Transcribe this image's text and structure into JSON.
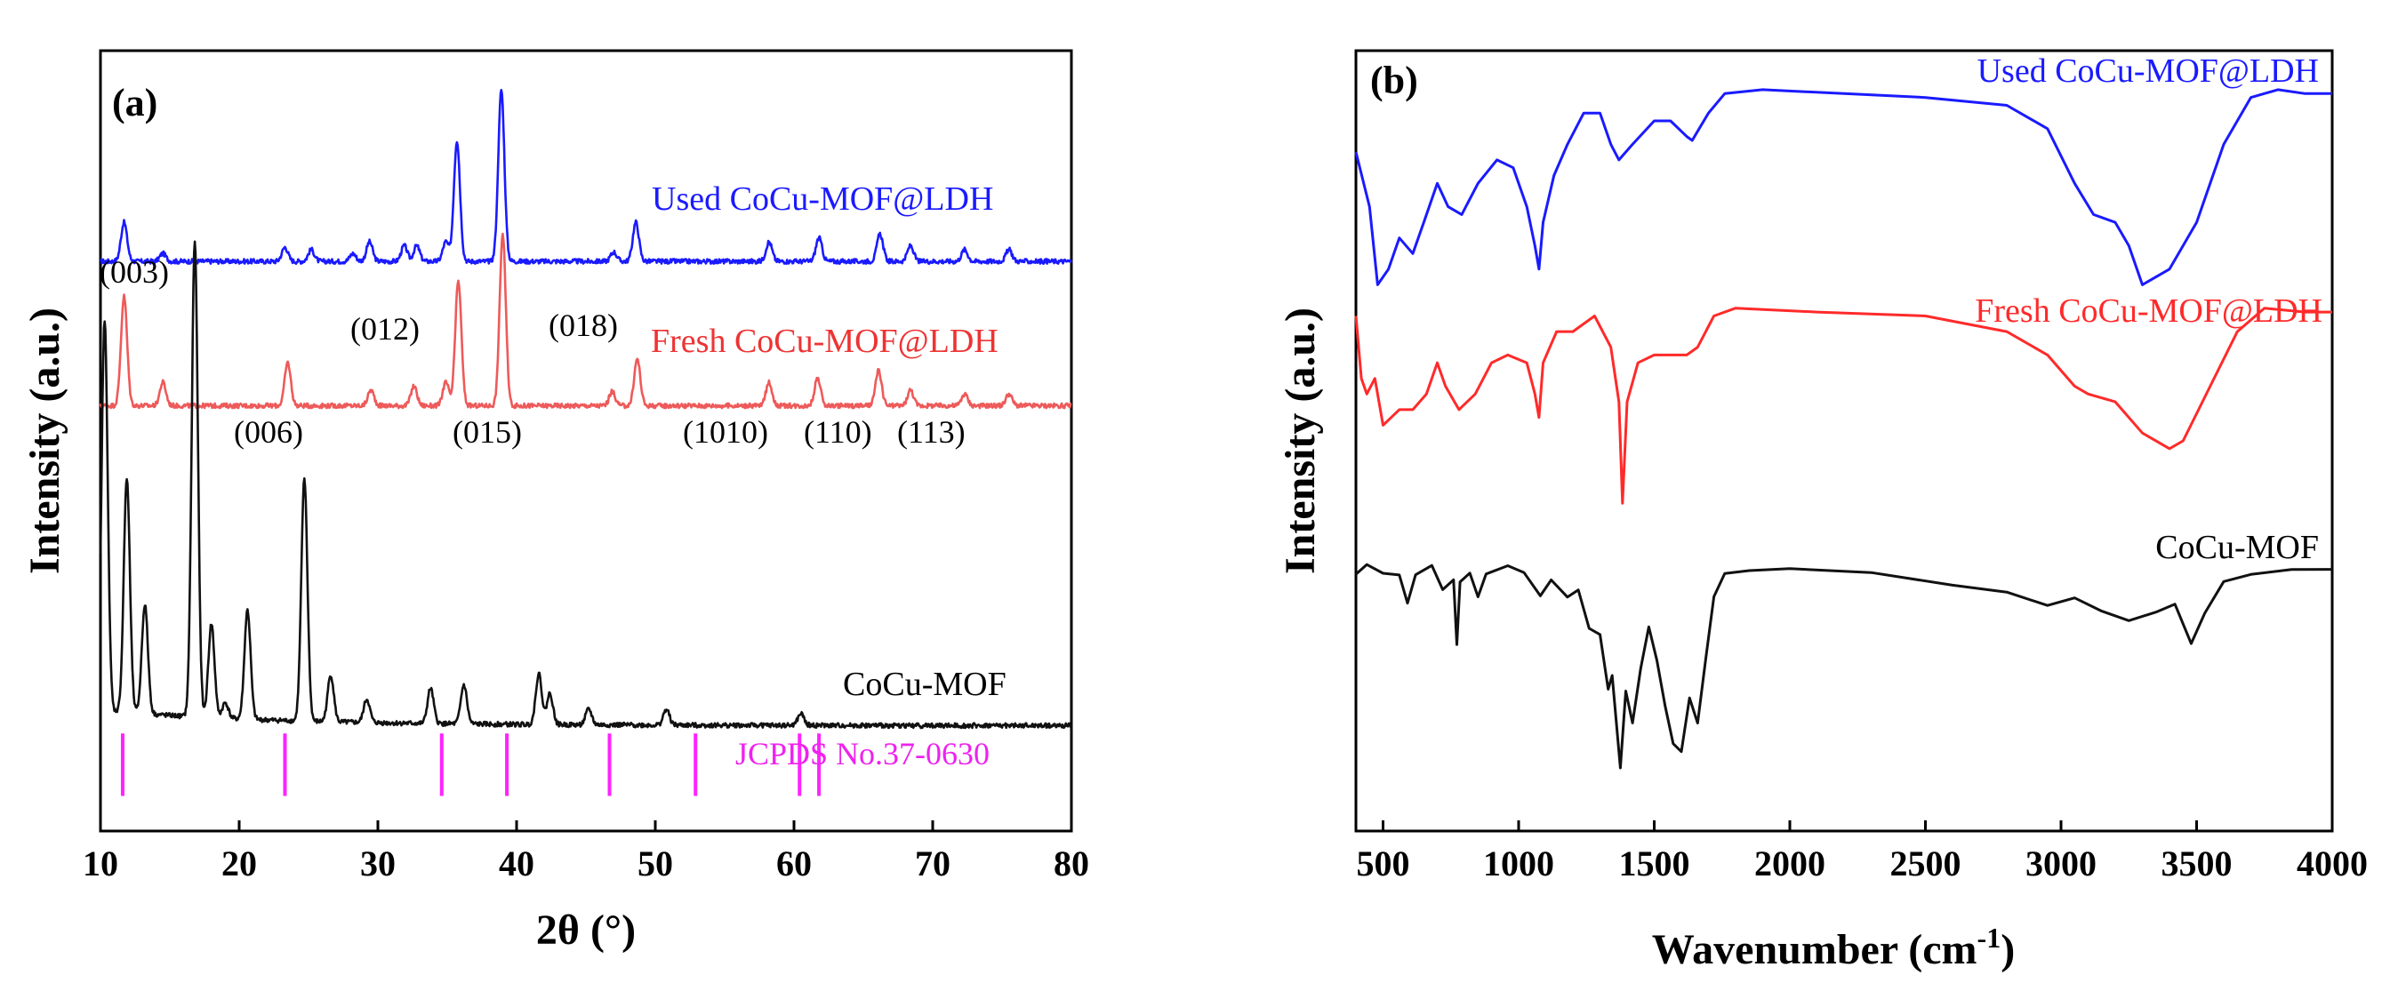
{
  "colors": {
    "used": "#1a1aff",
    "fresh": "#ff2a2a",
    "mof": "#111111",
    "ref": "#ff22ff",
    "fresh_xrd": "#ee5a5a"
  },
  "chart_data": [
    {
      "type": "line",
      "panel": "(a)",
      "title": "",
      "xlabel": "2θ (°)",
      "ylabel": "Intensity (a.u.)",
      "xlim": [
        10,
        80
      ],
      "xticks": [
        "10",
        "20",
        "30",
        "40",
        "50",
        "60",
        "70",
        "80"
      ],
      "grid": false,
      "series": [
        {
          "name": "Used CoCu-MOF@LDH",
          "color_key": "used",
          "baseline": 0.73,
          "peaks": [
            [
              11.7,
              0.05
            ],
            [
              14.5,
              0.01
            ],
            [
              23.3,
              0.018
            ],
            [
              25.2,
              0.015
            ],
            [
              28.2,
              0.01
            ],
            [
              29.4,
              0.025
            ],
            [
              31.9,
              0.02
            ],
            [
              32.8,
              0.02
            ],
            [
              34.9,
              0.025
            ],
            [
              35.7,
              0.155
            ],
            [
              38.9,
              0.22
            ],
            [
              47.0,
              0.012
            ],
            [
              48.6,
              0.05
            ],
            [
              58.2,
              0.025
            ],
            [
              61.8,
              0.03
            ],
            [
              66.2,
              0.035
            ],
            [
              68.4,
              0.02
            ],
            [
              72.3,
              0.015
            ],
            [
              75.5,
              0.015
            ]
          ]
        },
        {
          "name": "Fresh CoCu-MOF@LDH",
          "color_key": "fresh_xrd",
          "baseline": 0.545,
          "peaks": [
            [
              11.7,
              0.14
            ],
            [
              14.5,
              0.03
            ],
            [
              23.5,
              0.055
            ],
            [
              29.5,
              0.02
            ],
            [
              32.6,
              0.025
            ],
            [
              34.9,
              0.03
            ],
            [
              35.8,
              0.16
            ],
            [
              39.0,
              0.22
            ],
            [
              46.9,
              0.018
            ],
            [
              48.7,
              0.06
            ],
            [
              58.2,
              0.03
            ],
            [
              61.7,
              0.035
            ],
            [
              66.1,
              0.045
            ],
            [
              68.4,
              0.02
            ],
            [
              72.3,
              0.015
            ],
            [
              75.5,
              0.015
            ]
          ]
        },
        {
          "name": "CoCu-MOF",
          "color_key": "mof",
          "baseline": 0.135,
          "peaks": [
            [
              10.3,
              0.5
            ],
            [
              11.9,
              0.3
            ],
            [
              13.2,
              0.14
            ],
            [
              16.8,
              0.61
            ],
            [
              18.0,
              0.12
            ],
            [
              19.0,
              0.02
            ],
            [
              20.6,
              0.14
            ],
            [
              24.7,
              0.31
            ],
            [
              26.6,
              0.06
            ],
            [
              29.2,
              0.03
            ],
            [
              33.8,
              0.045
            ],
            [
              36.2,
              0.05
            ],
            [
              41.6,
              0.065
            ],
            [
              42.4,
              0.04
            ],
            [
              45.2,
              0.02
            ],
            [
              50.8,
              0.02
            ],
            [
              60.5,
              0.015
            ]
          ]
        }
      ],
      "series_labels": [
        "Used CoCu-MOF@LDH",
        "Fresh CoCu-MOF@LDH",
        "CoCu-MOF"
      ],
      "reference": {
        "label": "JCPDS No.37-0630",
        "positions": [
          11.6,
          23.3,
          34.6,
          39.3,
          46.7,
          52.9,
          60.4,
          61.8
        ]
      },
      "peak_labels": [
        "(003)",
        "(006)",
        "(012)",
        "(015)",
        "(018)",
        "(1010)",
        "(110)",
        "(113)"
      ]
    },
    {
      "type": "line",
      "panel": "(b)",
      "title": "",
      "xlabel": "Wavenumber (cm",
      "xlabel_sup": "-1",
      "xlabel_end": ")",
      "ylabel": "Intensity (a.u.)",
      "xlim": [
        400,
        4000
      ],
      "xticks": [
        "500",
        "1000",
        "1500",
        "2000",
        "2500",
        "3000",
        "3500",
        "4000"
      ],
      "grid": false,
      "series": [
        {
          "name": "Used CoCu-MOF@LDH",
          "color_key": "used",
          "points": [
            [
              400,
              0.87
            ],
            [
              450,
              0.8
            ],
            [
              480,
              0.7
            ],
            [
              520,
              0.72
            ],
            [
              560,
              0.76
            ],
            [
              610,
              0.74
            ],
            [
              650,
              0.78
            ],
            [
              700,
              0.83
            ],
            [
              740,
              0.8
            ],
            [
              790,
              0.79
            ],
            [
              850,
              0.83
            ],
            [
              920,
              0.86
            ],
            [
              980,
              0.85
            ],
            [
              1030,
              0.8
            ],
            [
              1060,
              0.75
            ],
            [
              1075,
              0.72
            ],
            [
              1090,
              0.78
            ],
            [
              1130,
              0.84
            ],
            [
              1180,
              0.88
            ],
            [
              1240,
              0.92
            ],
            [
              1300,
              0.92
            ],
            [
              1340,
              0.88
            ],
            [
              1370,
              0.86
            ],
            [
              1420,
              0.88
            ],
            [
              1500,
              0.91
            ],
            [
              1560,
              0.91
            ],
            [
              1620,
              0.89
            ],
            [
              1640,
              0.885
            ],
            [
              1700,
              0.92
            ],
            [
              1760,
              0.945
            ],
            [
              1900,
              0.95
            ],
            [
              2200,
              0.945
            ],
            [
              2500,
              0.94
            ],
            [
              2800,
              0.93
            ],
            [
              2950,
              0.9
            ],
            [
              3050,
              0.83
            ],
            [
              3120,
              0.79
            ],
            [
              3200,
              0.78
            ],
            [
              3250,
              0.75
            ],
            [
              3300,
              0.7
            ],
            [
              3400,
              0.72
            ],
            [
              3500,
              0.78
            ],
            [
              3600,
              0.88
            ],
            [
              3700,
              0.94
            ],
            [
              3800,
              0.95
            ],
            [
              3900,
              0.945
            ],
            [
              4000,
              0.945
            ]
          ]
        },
        {
          "name": "Fresh CoCu-MOF@LDH",
          "color_key": "fresh",
          "points": [
            [
              400,
              0.66
            ],
            [
              420,
              0.58
            ],
            [
              440,
              0.56
            ],
            [
              470,
              0.58
            ],
            [
              500,
              0.52
            ],
            [
              560,
              0.54
            ],
            [
              610,
              0.54
            ],
            [
              660,
              0.56
            ],
            [
              700,
              0.6
            ],
            [
              730,
              0.57
            ],
            [
              780,
              0.54
            ],
            [
              840,
              0.56
            ],
            [
              900,
              0.6
            ],
            [
              960,
              0.61
            ],
            [
              1030,
              0.6
            ],
            [
              1060,
              0.56
            ],
            [
              1075,
              0.53
            ],
            [
              1090,
              0.6
            ],
            [
              1140,
              0.64
            ],
            [
              1200,
              0.64
            ],
            [
              1280,
              0.66
            ],
            [
              1340,
              0.62
            ],
            [
              1370,
              0.55
            ],
            [
              1383,
              0.42
            ],
            [
              1400,
              0.55
            ],
            [
              1440,
              0.6
            ],
            [
              1500,
              0.61
            ],
            [
              1560,
              0.61
            ],
            [
              1620,
              0.61
            ],
            [
              1660,
              0.62
            ],
            [
              1720,
              0.66
            ],
            [
              1800,
              0.67
            ],
            [
              2100,
              0.665
            ],
            [
              2500,
              0.66
            ],
            [
              2800,
              0.64
            ],
            [
              2950,
              0.61
            ],
            [
              3050,
              0.57
            ],
            [
              3100,
              0.56
            ],
            [
              3200,
              0.55
            ],
            [
              3300,
              0.51
            ],
            [
              3400,
              0.49
            ],
            [
              3450,
              0.5
            ],
            [
              3550,
              0.57
            ],
            [
              3650,
              0.64
            ],
            [
              3750,
              0.67
            ],
            [
              3900,
              0.665
            ],
            [
              4000,
              0.665
            ]
          ]
        },
        {
          "name": "CoCu-MOF",
          "color_key": "mof",
          "points": [
            [
              400,
              0.33
            ],
            [
              440,
              0.34
            ],
            [
              500,
              0.33
            ],
            [
              560,
              0.33
            ],
            [
              590,
              0.29
            ],
            [
              620,
              0.33
            ],
            [
              680,
              0.34
            ],
            [
              720,
              0.31
            ],
            [
              760,
              0.32
            ],
            [
              772,
              0.24
            ],
            [
              784,
              0.32
            ],
            [
              820,
              0.33
            ],
            [
              850,
              0.3
            ],
            [
              880,
              0.33
            ],
            [
              960,
              0.34
            ],
            [
              1020,
              0.33
            ],
            [
              1080,
              0.3
            ],
            [
              1120,
              0.32
            ],
            [
              1180,
              0.3
            ],
            [
              1220,
              0.31
            ],
            [
              1260,
              0.26
            ],
            [
              1300,
              0.25
            ],
            [
              1330,
              0.18
            ],
            [
              1345,
              0.2
            ],
            [
              1375,
              0.08
            ],
            [
              1395,
              0.18
            ],
            [
              1420,
              0.14
            ],
            [
              1450,
              0.21
            ],
            [
              1480,
              0.26
            ],
            [
              1510,
              0.22
            ],
            [
              1540,
              0.16
            ],
            [
              1570,
              0.11
            ],
            [
              1600,
              0.1
            ],
            [
              1630,
              0.17
            ],
            [
              1660,
              0.14
            ],
            [
              1690,
              0.22
            ],
            [
              1720,
              0.3
            ],
            [
              1760,
              0.33
            ],
            [
              1850,
              0.335
            ],
            [
              2000,
              0.335
            ],
            [
              2300,
              0.33
            ],
            [
              2600,
              0.315
            ],
            [
              2800,
              0.305
            ],
            [
              2950,
              0.29
            ],
            [
              3050,
              0.3
            ],
            [
              3150,
              0.28
            ],
            [
              3250,
              0.27
            ],
            [
              3350,
              0.28
            ],
            [
              3420,
              0.29
            ],
            [
              3480,
              0.24
            ],
            [
              3530,
              0.28
            ],
            [
              3600,
              0.32
            ],
            [
              3700,
              0.33
            ],
            [
              3850,
              0.335
            ],
            [
              4000,
              0.335
            ]
          ]
        }
      ],
      "series_labels": [
        "Used CoCu-MOF@LDH",
        "Fresh CoCu-MOF@LDH",
        "CoCu-MOF"
      ]
    }
  ]
}
